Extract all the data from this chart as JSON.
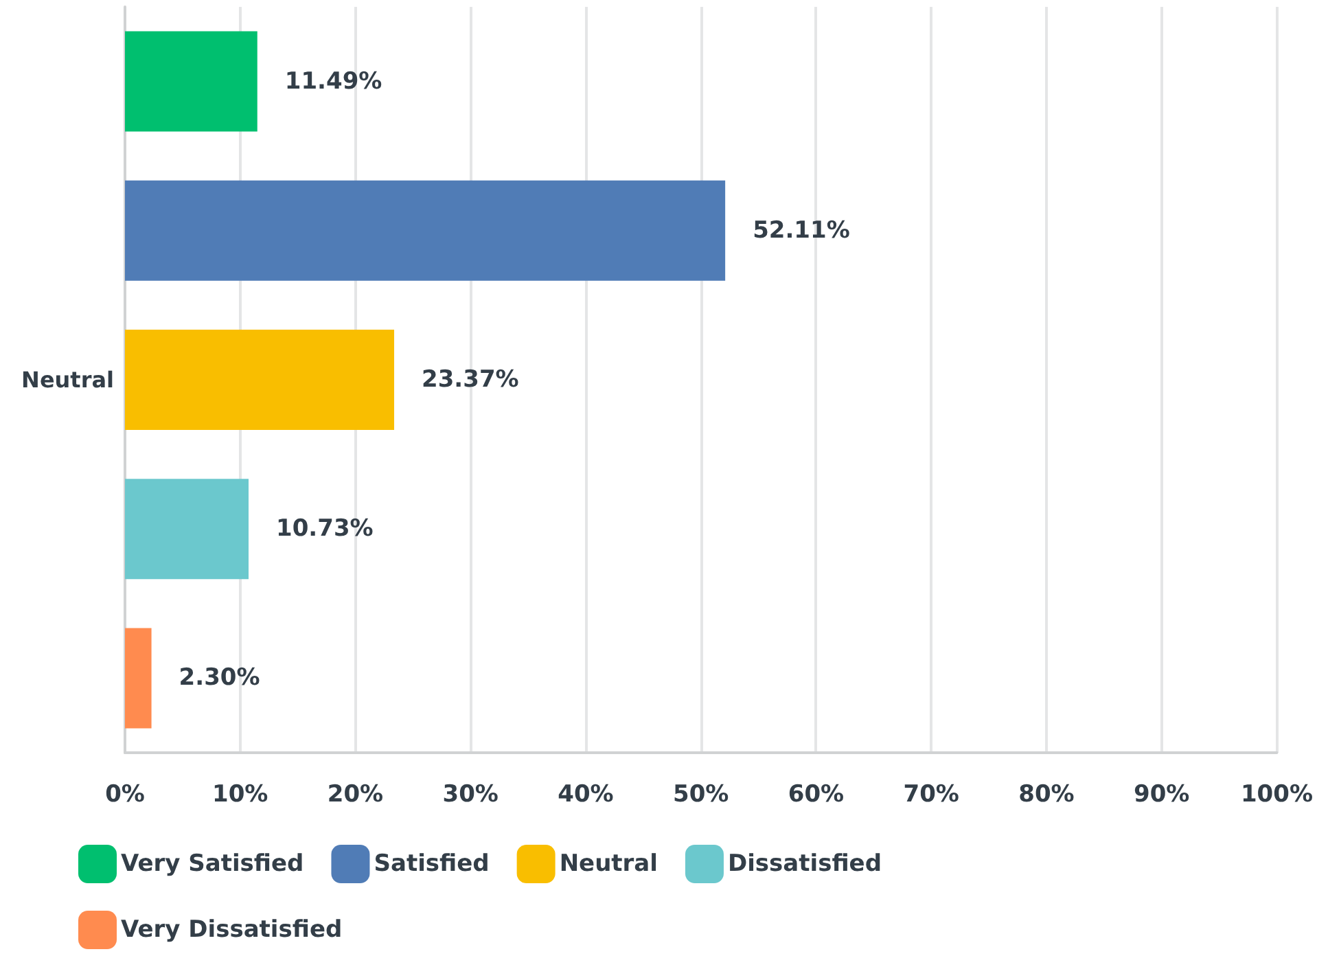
{
  "chart_data": {
    "type": "bar",
    "orientation": "horizontal",
    "stacked": true,
    "categories": [
      null,
      null,
      "Neutral",
      null,
      null
    ],
    "series": [
      {
        "name": "Very Satisfied",
        "color": "#00bf6f",
        "values": [
          11.49,
          null,
          null,
          null,
          null
        ],
        "value_labels": [
          "11.49%",
          null,
          null,
          null,
          null
        ]
      },
      {
        "name": "Satisfied",
        "color": "#507cb6",
        "values": [
          null,
          52.11,
          null,
          null,
          null
        ],
        "value_labels": [
          null,
          "52.11%",
          null,
          null,
          null
        ]
      },
      {
        "name": "Neutral",
        "color": "#f9be00",
        "values": [
          null,
          null,
          23.37,
          null,
          null
        ],
        "value_labels": [
          null,
          null,
          "23.37%",
          null,
          null
        ]
      },
      {
        "name": "Dissatisfied",
        "color": "#6bc8cd",
        "values": [
          null,
          null,
          null,
          10.73,
          null
        ],
        "value_labels": [
          null,
          null,
          null,
          "10.73%",
          null
        ]
      },
      {
        "name": "Very Dissatisfied",
        "color": "#ff8b4f",
        "values": [
          null,
          null,
          null,
          null,
          2.3
        ],
        "value_labels": [
          null,
          null,
          null,
          null,
          "2.30%"
        ]
      }
    ],
    "xlim": [
      0,
      100
    ],
    "xticks": [
      {
        "value": 0,
        "label": "0%"
      },
      {
        "value": 10,
        "label": "10%"
      },
      {
        "value": 20,
        "label": "20%"
      },
      {
        "value": 30,
        "label": "30%"
      },
      {
        "value": 40,
        "label": "40%"
      },
      {
        "value": 50,
        "label": "50%"
      },
      {
        "value": 60,
        "label": "60%"
      },
      {
        "value": 70,
        "label": "70%"
      },
      {
        "value": 80,
        "label": "80%"
      },
      {
        "value": 90,
        "label": "90%"
      },
      {
        "value": 100,
        "label": "100%"
      }
    ],
    "grid": "x",
    "legend": "bottom left"
  }
}
